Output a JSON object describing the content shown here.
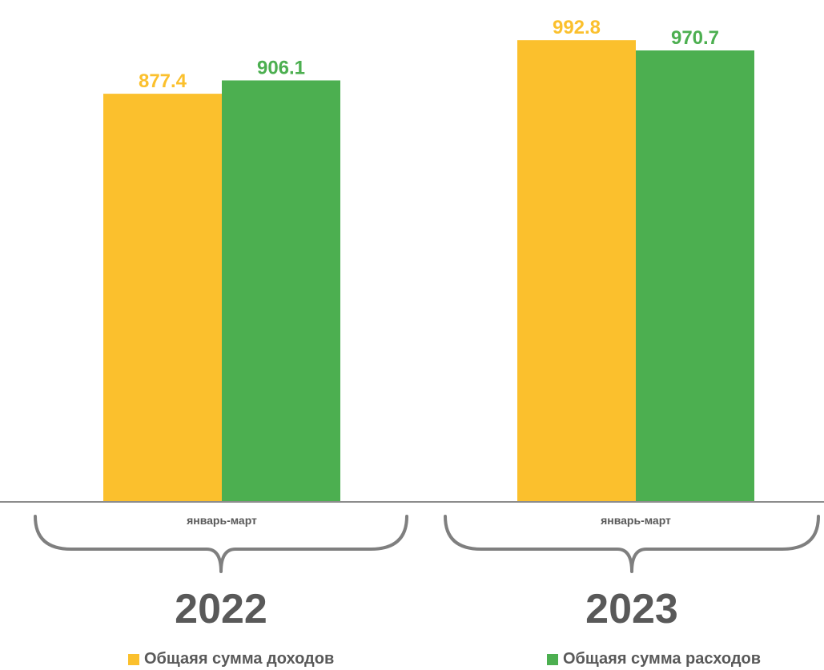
{
  "chart_data": {
    "type": "bar",
    "groups": [
      {
        "year": "2022",
        "category": "январь-март",
        "values": [
          877.4,
          906.1
        ]
      },
      {
        "year": "2023",
        "category": "январь-март",
        "values": [
          992.8,
          970.7
        ]
      }
    ],
    "series": [
      {
        "name": "Общаяя сумма доходов",
        "color": "#FBC02D"
      },
      {
        "name": "Общаяя сумма расходов",
        "color": "#4CAF50"
      }
    ],
    "ylim": [
      0,
      1000
    ],
    "grid": false
  }
}
